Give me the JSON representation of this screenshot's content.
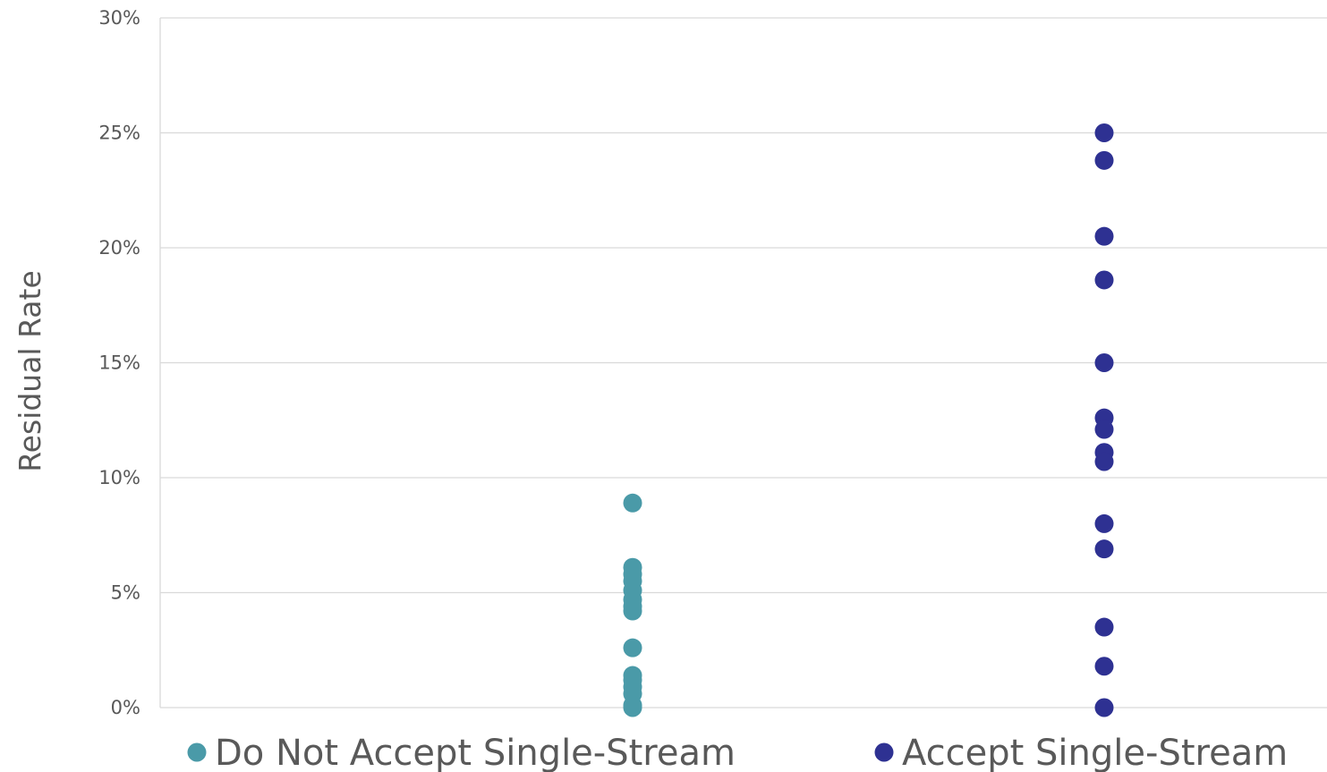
{
  "chart_data": {
    "type": "scatter",
    "title": "",
    "xlabel": "",
    "ylabel": "Residual Rate",
    "ylim": [
      0,
      30
    ],
    "y_ticks": [
      0,
      5,
      10,
      15,
      20,
      25,
      30
    ],
    "y_tick_format": "percent",
    "grid": "horizontal",
    "categories": [
      "Do Not Accept Single-Stream",
      "Accept Single-Stream"
    ],
    "series": [
      {
        "category": "Do Not Accept Single-Stream",
        "color": "#4a9aa8",
        "values": [
          8.9,
          6.1,
          5.8,
          5.5,
          5.1,
          4.7,
          4.4,
          4.2,
          2.6,
          1.4,
          1.2,
          0.9,
          0.6,
          0.1,
          0.0
        ]
      },
      {
        "category": "Accept Single-Stream",
        "color": "#2e3192",
        "values": [
          25.0,
          23.8,
          20.5,
          18.6,
          15.0,
          12.6,
          12.1,
          11.1,
          10.7,
          8.0,
          6.9,
          3.5,
          1.8,
          0.0
        ]
      }
    ]
  },
  "marker_colors": {
    "do_not_accept": "#4a9aa8",
    "accept": "#2e3192"
  }
}
